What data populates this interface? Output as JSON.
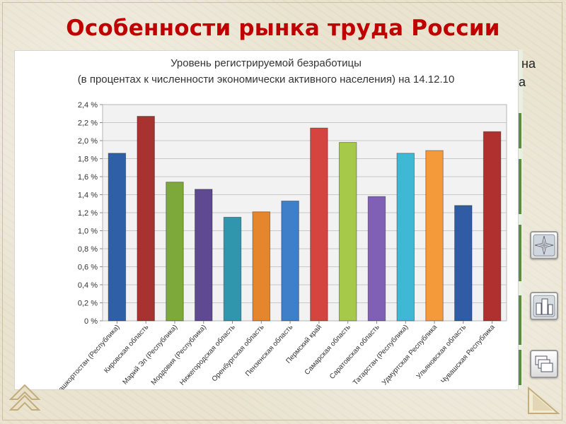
{
  "slide": {
    "title": "Особенности рынка труда России",
    "peek_text_1": "на",
    "peek_text_2": "а"
  },
  "colors": {
    "title": "#c00000",
    "accent_green": "#5f8d3e"
  },
  "icons": [
    "compass-icon",
    "buildings-icon",
    "windows-icon",
    "nav-arrow-icon",
    "back-arrow-icon"
  ],
  "chart_data": {
    "type": "bar",
    "title": "Уровень регистрируемой безработицы",
    "subtitle": "(в процентах к численности экономически активного населения) на 14.12.10",
    "xlabel": "",
    "ylabel": "",
    "ylim": [
      0,
      2.4
    ],
    "yticks": [
      "0 %",
      "0,2 %",
      "0,4 %",
      "0,6 %",
      "0,8 %",
      "1,0 %",
      "1,2 %",
      "1,4 %",
      "1,6 %",
      "1,8 %",
      "2,0 %",
      "2,2 %",
      "2,4 %"
    ],
    "grid": true,
    "legend": "none",
    "categories": [
      "Башкортостан (Республика)",
      "Кировская область",
      "Марий Эл (Республика)",
      "Мордовия (Республика)",
      "Нижегородская область",
      "Оренбургская область",
      "Пензенская область",
      "Пермский край",
      "Самарская область",
      "Саратовская область",
      "Татарстан (Республика)",
      "Удмуртская Республика",
      "Ульяновская область",
      "Чувашская Республика"
    ],
    "values": [
      1.86,
      2.27,
      1.54,
      1.46,
      1.15,
      1.21,
      1.33,
      2.14,
      1.98,
      1.38,
      1.86,
      1.89,
      1.28,
      2.1
    ],
    "bar_colors": [
      "#2f5fa7",
      "#a83230",
      "#7da83a",
      "#5f4a91",
      "#2f96ad",
      "#e5852c",
      "#3f7fc9",
      "#d64440",
      "#a6c94a",
      "#8060b4",
      "#3fb8d5",
      "#f59a3a",
      "#2f5ca5",
      "#b03030"
    ]
  }
}
